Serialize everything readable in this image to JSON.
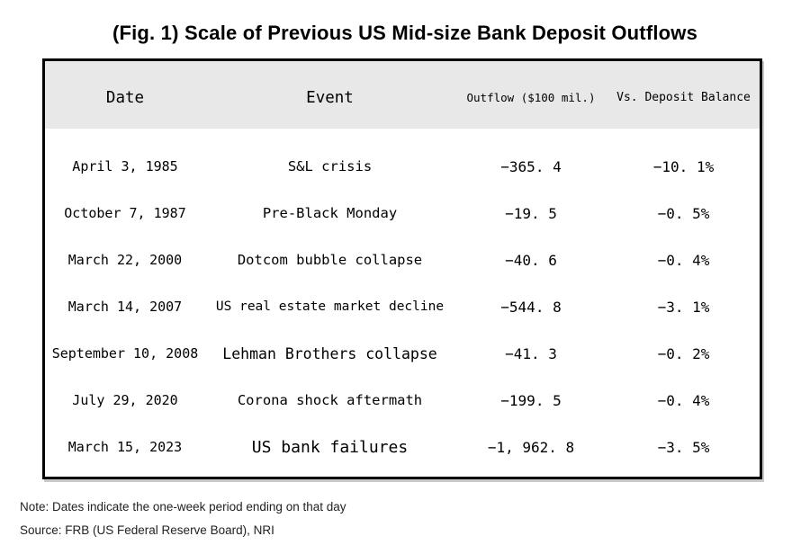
{
  "figure": {
    "title": "(Fig. 1) Scale of Previous US Mid-size Bank Deposit Outflows",
    "note": "Note: Dates indicate the one-week period ending on that day",
    "source": "Source: FRB (US Federal Reserve Board), NRI"
  },
  "table": {
    "headers": {
      "date": "Date",
      "event": "Event",
      "outflow": "Outflow ($100 mil.)",
      "vs_deposit": "Vs. Deposit Balance"
    },
    "rows": [
      {
        "date": "April 3, 1985",
        "event": "S&L crisis",
        "outflow": "−365. 4",
        "vs_deposit": "−10. 1%"
      },
      {
        "date": "October 7, 1987",
        "event": "Pre-Black Monday",
        "outflow": "−19. 5",
        "vs_deposit": "−0. 5%"
      },
      {
        "date": "March 22, 2000",
        "event": "Dotcom bubble collapse",
        "outflow": "−40. 6",
        "vs_deposit": "−0. 4%"
      },
      {
        "date": "March 14, 2007",
        "event": "US real estate market decline",
        "outflow": "−544. 8",
        "vs_deposit": "−3. 1%"
      },
      {
        "date": "September 10, 2008",
        "event": "Lehman Brothers collapse",
        "outflow": "−41. 3",
        "vs_deposit": "−0. 2%"
      },
      {
        "date": "July 29, 2020",
        "event": "Corona shock aftermath",
        "outflow": "−199. 5",
        "vs_deposit": "−0. 4%"
      },
      {
        "date": "March 15, 2023",
        "event": "US bank failures",
        "outflow": "−1, 962. 8",
        "vs_deposit": "−3. 5%"
      }
    ]
  },
  "colors": {
    "header_bg": "#e8e8e8",
    "border": "#000000",
    "text": "#000000",
    "note_text": "#222222"
  },
  "chart_data": {
    "type": "table",
    "title": "(Fig. 1) Scale of Previous US Mid-size Bank Deposit Outflows",
    "columns": [
      "Date",
      "Event",
      "Outflow ($100 mil.)",
      "Vs. Deposit Balance"
    ],
    "rows": [
      [
        "April 3, 1985",
        "S&L crisis",
        -365.4,
        "-10.1%"
      ],
      [
        "October 7, 1987",
        "Pre-Black Monday",
        -19.5,
        "-0.5%"
      ],
      [
        "March 22, 2000",
        "Dotcom bubble collapse",
        -40.6,
        "-0.4%"
      ],
      [
        "March 14, 2007",
        "US real estate market decline",
        -544.8,
        "-3.1%"
      ],
      [
        "September 10, 2008",
        "Lehman Brothers collapse",
        -41.3,
        "-0.2%"
      ],
      [
        "July 29, 2020",
        "Corona shock aftermath",
        -199.5,
        "-0.4%"
      ],
      [
        "March 15, 2023",
        "US bank failures",
        -1962.8,
        "-3.5%"
      ]
    ],
    "units": {
      "outflow": "$100 million",
      "vs_deposit": "percent of deposit balance"
    },
    "note": "Dates indicate the one-week period ending on that day",
    "source": "FRB (US Federal Reserve Board), NRI"
  }
}
